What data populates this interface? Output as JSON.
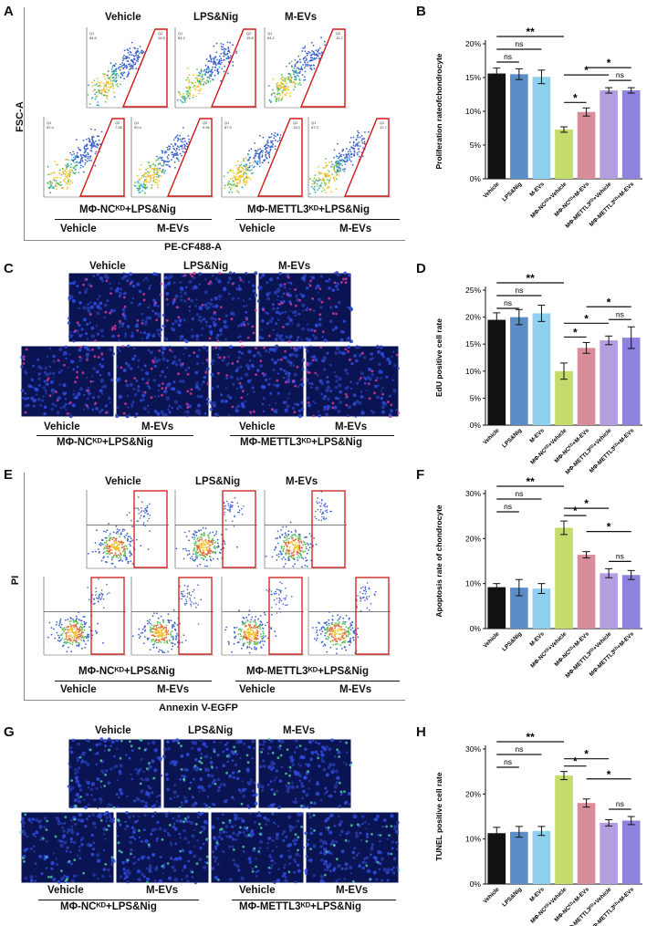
{
  "panels": {
    "A": "A",
    "B": "B",
    "C": "C",
    "D": "D",
    "E": "E",
    "F": "F",
    "G": "G",
    "H": "H"
  },
  "flow_A": {
    "y_title": "FSC-A",
    "x_title": "PE-CF488-A",
    "top_labels": [
      "Vehicle",
      "LPS&Nig",
      "M-EVs"
    ],
    "bottom_labels": [
      "Vehicle",
      "M-EVs",
      "Vehicle",
      "M-EVs"
    ],
    "group1": "MΦ-NCᴷᴰ+LPS&Nig",
    "group2": "MΦ-METTL3ᴷᴰ+LPS&Nig",
    "quad_q1": [
      "84.5",
      "84.2",
      "84.2",
      "92.4",
      "90.4",
      "87.0",
      "87.3"
    ],
    "quad_q2": [
      "15.5",
      "15.8",
      "15.7",
      "7.58",
      "9.56",
      "13.0",
      "12.7"
    ]
  },
  "micro_C": {
    "top_labels": [
      "Vehicle",
      "LPS&Nig",
      "M-EVs"
    ],
    "bottom_labels": [
      "Vehicle",
      "M-EVs",
      "Vehicle",
      "M-EVs"
    ],
    "group1": "MΦ-NCᴷᴰ+LPS&Nig",
    "group2": "MΦ-METTL3ᴷᴰ+LPS&Nig"
  },
  "flow_E": {
    "y_title": "PI",
    "x_title": "Annexin V-EGFP",
    "top_labels": [
      "Vehicle",
      "LPS&Nig",
      "M-EVs"
    ],
    "bottom_labels": [
      "Vehicle",
      "M-EVs",
      "Vehicle",
      "M-EVs"
    ],
    "group1": "MΦ-NCᴷᴰ+LPS&Nig",
    "group2": "MΦ-METTL3ᴷᴰ+LPS&Nig"
  },
  "micro_G": {
    "top_labels": [
      "Vehicle",
      "LPS&Nig",
      "M-EVs"
    ],
    "bottom_labels": [
      "Vehicle",
      "M-EVs",
      "Vehicle",
      "M-EVs"
    ],
    "group1": "MΦ-NCᴷᴰ+LPS&Nig",
    "group2": "MΦ-METTL3ᴷᴰ+LPS&Nig"
  },
  "colors": [
    "#111111",
    "#5b8ec9",
    "#8fd0ee",
    "#c4dc6c",
    "#d98c9a",
    "#b49ee0",
    "#8d83de"
  ],
  "chart_data": [
    {
      "id": "B",
      "type": "bar",
      "ylabel": "Proliferation rateofchondrocyte",
      "categories": [
        "Vehicle",
        "LPS&Nig",
        "M-EVs",
        "MΦ-NCᴷᴰ+Vehicle",
        "MΦ-NCᴷᴰ+M-EVs",
        "MΦ-METTL3ᴷᴰ+Vehicle",
        "MΦ-METTL3ᴷᴰ+M-EVs"
      ],
      "values": [
        15.6,
        15.5,
        15.1,
        7.3,
        9.9,
        13.1,
        13.1
      ],
      "errors": [
        0.8,
        0.8,
        1.0,
        0.4,
        0.6,
        0.4,
        0.4
      ],
      "ylim": [
        0,
        20
      ],
      "ticks": [
        0,
        5,
        10,
        15,
        20
      ],
      "tick_suffix": "%",
      "sig": [
        {
          "a": 0,
          "b": 3,
          "label": "**"
        },
        {
          "a": 0,
          "b": 2,
          "label": "ns"
        },
        {
          "a": 0,
          "b": 1,
          "label": "ns"
        },
        {
          "a": 3,
          "b": 4,
          "label": "*"
        },
        {
          "a": 3,
          "b": 5,
          "label": "*"
        },
        {
          "a": 4,
          "b": 6,
          "label": "*"
        },
        {
          "a": 5,
          "b": 6,
          "label": "ns"
        }
      ]
    },
    {
      "id": "D",
      "type": "bar",
      "ylabel": "EdU positive cell rate",
      "categories": [
        "Vehicle",
        "LPS&Nig",
        "M-EVs",
        "MΦ-NCᴷᴰ+Vehicle",
        "MΦ-NCᴷᴰ+M-EVs",
        "MΦ-METTL3ᴷᴰ+Vehicle",
        "MΦ-METTL3ᴷᴰ+M-EVs"
      ],
      "values": [
        19.5,
        20.0,
        20.7,
        10.0,
        14.3,
        15.7,
        16.2
      ],
      "errors": [
        1.3,
        1.4,
        1.5,
        1.5,
        1.0,
        0.8,
        2.0
      ],
      "ylim": [
        0,
        25
      ],
      "ticks": [
        0,
        5,
        10,
        15,
        20,
        25
      ],
      "tick_suffix": "%",
      "sig": [
        {
          "a": 0,
          "b": 3,
          "label": "**"
        },
        {
          "a": 0,
          "b": 2,
          "label": "ns"
        },
        {
          "a": 0,
          "b": 1,
          "label": "ns"
        },
        {
          "a": 3,
          "b": 4,
          "label": "*"
        },
        {
          "a": 3,
          "b": 5,
          "label": "*"
        },
        {
          "a": 4,
          "b": 6,
          "label": "*"
        },
        {
          "a": 5,
          "b": 6,
          "label": "ns"
        }
      ]
    },
    {
      "id": "F",
      "type": "bar",
      "ylabel": "Apoptosis rate of chondrocyte",
      "categories": [
        "Vehicle",
        "LPS&Nig",
        "M-EVs",
        "MΦ-NCᴷᴰ+Vehicle",
        "MΦ-NCᴷᴰ+M-EVs",
        "MΦ-METTL3ᴷᴰ+Vehicle",
        "MΦ-METTL3ᴷᴰ+M-EVs"
      ],
      "values": [
        9.2,
        9.1,
        8.9,
        22.4,
        16.4,
        12.3,
        11.9
      ],
      "errors": [
        0.8,
        1.8,
        1.1,
        1.5,
        0.7,
        1.0,
        1.0
      ],
      "ylim": [
        0,
        30
      ],
      "ticks": [
        0,
        10,
        20,
        30
      ],
      "tick_suffix": "%",
      "sig": [
        {
          "a": 0,
          "b": 3,
          "label": "**"
        },
        {
          "a": 0,
          "b": 2,
          "label": "ns"
        },
        {
          "a": 0,
          "b": 1,
          "label": "ns"
        },
        {
          "a": 3,
          "b": 4,
          "label": "*"
        },
        {
          "a": 3,
          "b": 5,
          "label": "*"
        },
        {
          "a": 4,
          "b": 6,
          "label": "*"
        },
        {
          "a": 5,
          "b": 6,
          "label": "ns"
        }
      ]
    },
    {
      "id": "H",
      "type": "bar",
      "ylabel": "TUNEL positive cell rate",
      "categories": [
        "Vehicle",
        "LPS&Nig",
        "M-EVs",
        "MΦ-NCᴷᴰ+Vehicle",
        "MΦ-NCᴷᴰ+M-EVs",
        "MΦ-METTL3ᴷᴰ+Vehicle",
        "MΦ-METTL3ᴷᴰ+M-EVs"
      ],
      "values": [
        11.3,
        11.6,
        11.8,
        24.1,
        18.0,
        13.6,
        14.1
      ],
      "errors": [
        1.3,
        1.2,
        1.0,
        0.9,
        0.9,
        0.7,
        0.9
      ],
      "ylim": [
        0,
        30
      ],
      "ticks": [
        0,
        10,
        20,
        30
      ],
      "tick_suffix": "%",
      "sig": [
        {
          "a": 0,
          "b": 3,
          "label": "**"
        },
        {
          "a": 0,
          "b": 2,
          "label": "ns"
        },
        {
          "a": 0,
          "b": 1,
          "label": "ns"
        },
        {
          "a": 3,
          "b": 4,
          "label": "*"
        },
        {
          "a": 3,
          "b": 5,
          "label": "*"
        },
        {
          "a": 4,
          "b": 6,
          "label": "*"
        },
        {
          "a": 5,
          "b": 6,
          "label": "ns"
        }
      ]
    }
  ]
}
